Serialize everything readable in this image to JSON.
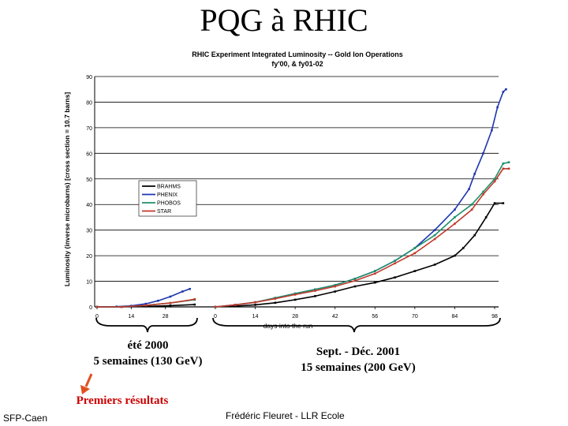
{
  "slide": {
    "title": "PQG à RHIC",
    "captions": {
      "ete_line1": "été 2000",
      "ete_line2": "5 semaines (130 GeV)",
      "sept_line1": "Sept. - Déc. 2001",
      "sept_line2": "15 semaines (200 GeV)",
      "premiers": "Premiers résultats"
    },
    "footer_left": "SFP-Caen",
    "footer_center": "Frédéric Fleuret - LLR Ecole",
    "arrow_color": "#e0501e"
  },
  "chart_data": {
    "type": "line",
    "title": "RHIC Experiment Integrated Luminosity -- Gold Ion Operations",
    "subtitle": "fy'00, & fy01-02",
    "xlabel": "days into the run",
    "ylabel": "Luminosity (inverse microbarns) [cross section = 10.7 barns]",
    "ylim": [
      0,
      90
    ],
    "yticks": [
      "0",
      "10",
      "20",
      "30",
      "40",
      "50",
      "60",
      "70",
      "80",
      "90"
    ],
    "run1_ticks": [
      "0",
      "14",
      "28"
    ],
    "run2_ticks": [
      "0",
      "14",
      "28",
      "42",
      "56",
      "70",
      "84",
      "98"
    ],
    "grid": true,
    "legend_position": "upper-left",
    "series": [
      {
        "name": "BRAHMS",
        "color": "#000000",
        "run1": [
          [
            0,
            0
          ],
          [
            10,
            0
          ],
          [
            20,
            0.2
          ],
          [
            30,
            0.5
          ],
          [
            40,
            0.9
          ]
        ],
        "run2": [
          [
            0,
            0
          ],
          [
            7,
            0.3
          ],
          [
            14,
            0.8
          ],
          [
            21,
            1.6
          ],
          [
            28,
            2.8
          ],
          [
            35,
            4.2
          ],
          [
            42,
            6
          ],
          [
            49,
            8
          ],
          [
            56,
            9.5
          ],
          [
            63,
            11.5
          ],
          [
            70,
            14
          ],
          [
            77,
            16.5
          ],
          [
            84,
            20
          ],
          [
            87,
            23
          ],
          [
            91,
            28
          ],
          [
            95,
            35
          ],
          [
            98,
            40.5
          ],
          [
            101,
            40.5
          ]
        ]
      },
      {
        "name": "PHENIX",
        "color": "#1f35b0",
        "run1": [
          [
            0,
            0
          ],
          [
            8,
            0.1
          ],
          [
            14,
            0.4
          ],
          [
            20,
            1.2
          ],
          [
            25,
            2.4
          ],
          [
            30,
            4
          ],
          [
            35,
            6
          ],
          [
            38,
            7
          ]
        ],
        "run2": [
          [
            0,
            0
          ],
          [
            7,
            0.8
          ],
          [
            14,
            1.8
          ],
          [
            21,
            3.5
          ],
          [
            28,
            5.2
          ],
          [
            35,
            6.8
          ],
          [
            42,
            8.5
          ],
          [
            49,
            11
          ],
          [
            56,
            14
          ],
          [
            63,
            18
          ],
          [
            70,
            23
          ],
          [
            77,
            30
          ],
          [
            84,
            38
          ],
          [
            89,
            46
          ],
          [
            91,
            52
          ],
          [
            94,
            60
          ],
          [
            97,
            69
          ],
          [
            99,
            78
          ],
          [
            101,
            84
          ],
          [
            102,
            85
          ]
        ]
      },
      {
        "name": "PHOBOS",
        "color": "#1f8f6a",
        "run1": [
          [
            0,
            0
          ],
          [
            10,
            0
          ],
          [
            20,
            0.6
          ],
          [
            30,
            1.5
          ],
          [
            40,
            2.8
          ]
        ],
        "run2": [
          [
            0,
            0
          ],
          [
            7,
            0.8
          ],
          [
            14,
            1.8
          ],
          [
            21,
            3.5
          ],
          [
            28,
            5.2
          ],
          [
            35,
            6.8
          ],
          [
            42,
            8.5
          ],
          [
            49,
            11
          ],
          [
            56,
            14
          ],
          [
            63,
            18
          ],
          [
            70,
            23
          ],
          [
            77,
            28
          ],
          [
            84,
            35
          ],
          [
            90,
            40
          ],
          [
            94,
            45
          ],
          [
            98,
            50
          ],
          [
            101,
            56
          ],
          [
            103,
            56.5
          ]
        ]
      },
      {
        "name": "STAR",
        "color": "#c0392b",
        "run1": [
          [
            0,
            0
          ],
          [
            10,
            0
          ],
          [
            20,
            0.6
          ],
          [
            30,
            1.5
          ],
          [
            40,
            3
          ]
        ],
        "run2": [
          [
            0,
            0
          ],
          [
            7,
            0.8
          ],
          [
            14,
            1.8
          ],
          [
            21,
            3.2
          ],
          [
            28,
            4.8
          ],
          [
            35,
            6.3
          ],
          [
            42,
            8
          ],
          [
            49,
            10.2
          ],
          [
            56,
            13
          ],
          [
            63,
            17
          ],
          [
            70,
            21
          ],
          [
            77,
            26.5
          ],
          [
            84,
            32.5
          ],
          [
            90,
            38
          ],
          [
            94,
            44
          ],
          [
            98,
            49
          ],
          [
            101,
            54
          ],
          [
            103,
            54
          ]
        ]
      }
    ]
  }
}
